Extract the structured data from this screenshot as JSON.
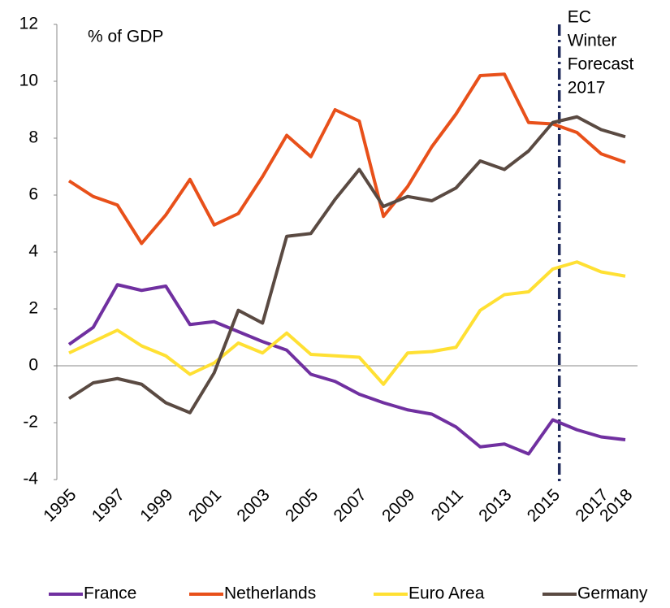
{
  "chart_data": {
    "type": "line",
    "y_label": "% of GDP",
    "annotation": [
      "EC",
      "Winter",
      "Forecast",
      "2017"
    ],
    "categories": [
      "1995",
      null,
      "1997",
      null,
      "1999",
      null,
      "2001",
      null,
      "2003",
      null,
      "2005",
      null,
      "2007",
      null,
      "2009",
      null,
      "2011",
      null,
      "2013",
      null,
      "2015",
      null,
      "2017",
      "2018"
    ],
    "ylim": [
      -4,
      12
    ],
    "yticks": [
      -4,
      -2,
      0,
      2,
      4,
      6,
      8,
      10,
      12
    ],
    "series": [
      {
        "name": "France",
        "color": "#7030a0",
        "values": [
          0.75,
          1.35,
          2.85,
          2.65,
          2.8,
          1.45,
          1.55,
          1.2,
          0.85,
          0.55,
          -0.3,
          -0.55,
          -1.0,
          -1.3,
          -1.55,
          -1.7,
          -2.15,
          -2.85,
          -2.75,
          -3.1,
          -1.9,
          -2.25,
          -2.5,
          -2.6
        ]
      },
      {
        "name": "Netherlands",
        "color": "#e8501a",
        "values": [
          6.5,
          5.95,
          5.65,
          4.3,
          5.3,
          6.55,
          4.95,
          5.35,
          6.65,
          8.1,
          7.35,
          9.0,
          8.6,
          5.25,
          6.3,
          7.7,
          8.85,
          10.2,
          10.25,
          8.55,
          8.5,
          8.2,
          7.45,
          7.15
        ]
      },
      {
        "name": "Euro Area",
        "color": "#ffe033",
        "values": [
          0.45,
          0.85,
          1.25,
          0.7,
          0.35,
          -0.3,
          0.1,
          0.8,
          0.45,
          1.15,
          0.4,
          0.35,
          0.3,
          -0.65,
          0.45,
          0.5,
          0.65,
          1.95,
          2.5,
          2.6,
          3.4,
          3.65,
          3.3,
          3.15
        ]
      },
      {
        "name": "Germany",
        "color": "#5a4a42",
        "values": [
          -1.15,
          -0.6,
          -0.45,
          -0.65,
          -1.3,
          -1.65,
          -0.25,
          1.95,
          1.5,
          4.55,
          4.65,
          5.85,
          6.9,
          5.6,
          5.95,
          5.8,
          6.25,
          7.2,
          6.9,
          7.55,
          8.55,
          8.75,
          8.3,
          8.05
        ]
      }
    ]
  }
}
